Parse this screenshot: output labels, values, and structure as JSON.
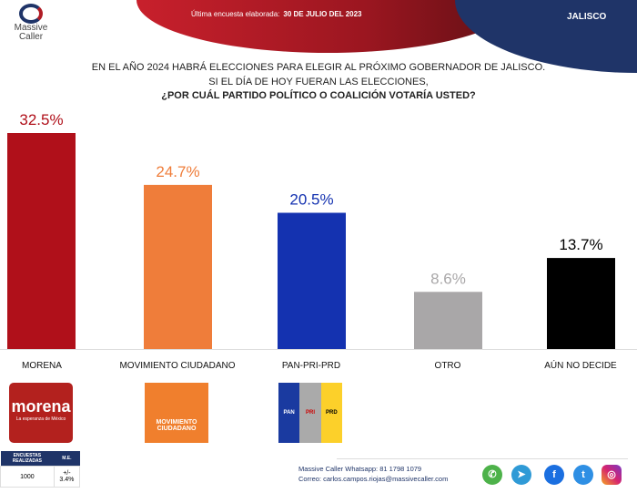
{
  "header": {
    "brand_line1": "Massive",
    "brand_line2": "Caller",
    "date_label": "Última encuesta elaborada:",
    "date_value": "30 DE JULIO DEL 2023",
    "state": "JALISCO"
  },
  "question": {
    "line1": "EN EL AÑO 2024 HABRÁ ELECCIONES PARA ELEGIR AL PRÓXIMO GOBERNADOR DE JALISCO.",
    "line2": "SI EL DÍA DE HOY FUERAN LAS ELECCIONES,",
    "line3": "¿POR CUÁL PARTIDO POLÍTICO O COALICIÓN VOTARÍA USTED?"
  },
  "chart_data": {
    "type": "bar",
    "title": "¿POR CUÁL PARTIDO POLÍTICO O COALICIÓN VOTARÍA USTED?",
    "categories": [
      "MORENA",
      "MOVIMIENTO CIUDADANO",
      "PAN-PRI-PRD",
      "OTRO",
      "AÚN NO DECIDE"
    ],
    "values": [
      32.5,
      24.7,
      20.5,
      8.6,
      13.7
    ],
    "labels": [
      "32.5%",
      "24.7%",
      "20.5%",
      "8.6%",
      "13.7%"
    ],
    "colors": [
      "#b0101a",
      "#ef7d3a",
      "#1432b0",
      "#a9a7a8",
      "#000000"
    ],
    "label_colors": [
      "#b0101a",
      "#ef7d3a",
      "#1432b0",
      "#a9a7a8",
      "#000000"
    ],
    "ylim": [
      0,
      32.5
    ],
    "xlabel": "",
    "ylabel": ""
  },
  "logos": {
    "morena": "morena",
    "morena_sub": "La esperanza de México",
    "mc_line1": "MOVIMIENTO",
    "mc_line2": "CIUDADANO",
    "pan": "PAN",
    "pri": "PRI",
    "prd": "PRD"
  },
  "survey": {
    "h1": "ENCUESTAS REALIZADAS",
    "h2": "M.E.",
    "count": "1000",
    "margin": "+/- 3.4%"
  },
  "footer": {
    "whatsapp": "Massive Caller Whatsapp: 81 1798 1079",
    "email": "Correo: carlos.campos.riojas@massivecaller.com"
  }
}
